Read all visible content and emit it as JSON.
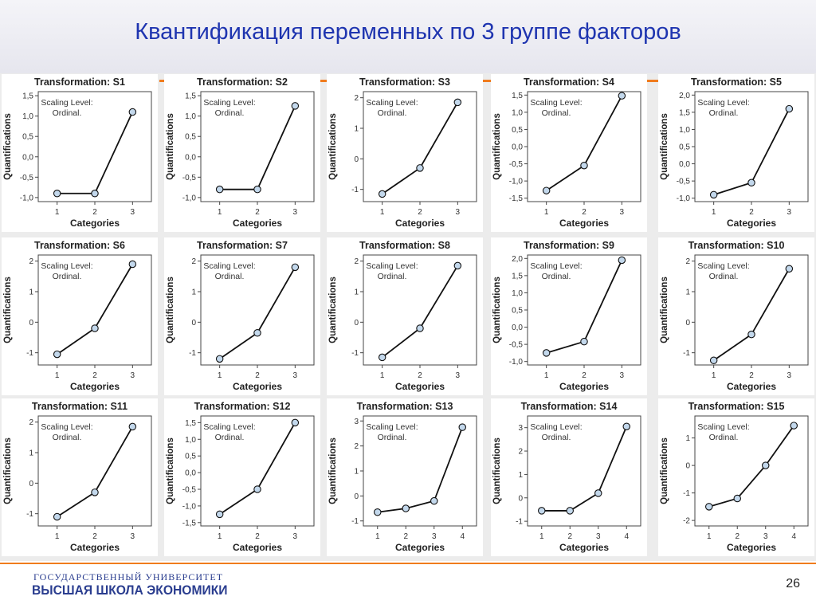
{
  "slide": {
    "title": "Квантификация переменных по 3 группе факторов",
    "footer_org_line1": "ГОСУДАРСТВЕННЫЙ УНИВЕРСИТЕТ",
    "footer_org_line2": "ВЫСШАЯ ШКОЛА ЭКОНОМИКИ",
    "page_number": "26",
    "accent_color": "#f07c1d",
    "title_color": "#1f35b0",
    "point_fill": "#c3d8ec"
  },
  "chart_data": [
    {
      "type": "line",
      "title": "Transformation: S1",
      "annotation": "Scaling Level:\nOrdinal.",
      "xlabel": "Categories",
      "ylabel": "Quantifications",
      "x": [
        1,
        2,
        3
      ],
      "y": [
        -0.9,
        -0.9,
        1.1
      ],
      "ylim": [
        -1.1,
        1.6
      ],
      "yticks": [
        "1,5",
        "1,0",
        "0,5",
        "0,0",
        "-0,5",
        "-1,0"
      ],
      "ytick_values": [
        1.5,
        1.0,
        0.5,
        0.0,
        -0.5,
        -1.0
      ]
    },
    {
      "type": "line",
      "title": "Transformation: S2",
      "annotation": "Scaling Level:\nOrdinal.",
      "xlabel": "Categories",
      "ylabel": "Quantifications",
      "x": [
        1,
        2,
        3
      ],
      "y": [
        -0.8,
        -0.8,
        1.25
      ],
      "ylim": [
        -1.1,
        1.6
      ],
      "yticks": [
        "1,5",
        "1,0",
        "0,5",
        "0,0",
        "-0,5",
        "-1,0"
      ],
      "ytick_values": [
        1.5,
        1.0,
        0.5,
        0.0,
        -0.5,
        -1.0
      ]
    },
    {
      "type": "line",
      "title": "Transformation: S3",
      "annotation": "Scaling Level:\nOrdinal.",
      "xlabel": "Categories",
      "ylabel": "Quantifications",
      "x": [
        1,
        2,
        3
      ],
      "y": [
        -1.15,
        -0.3,
        1.85
      ],
      "ylim": [
        -1.4,
        2.2
      ],
      "yticks": [
        "2",
        "1",
        "0",
        "-1"
      ],
      "ytick_values": [
        2,
        1,
        0,
        -1
      ]
    },
    {
      "type": "line",
      "title": "Transformation: S4",
      "annotation": "Scaling Level:\nOrdinal.",
      "xlabel": "Categories",
      "ylabel": "Quantifications",
      "x": [
        1,
        2,
        3
      ],
      "y": [
        -1.28,
        -0.55,
        1.48
      ],
      "ylim": [
        -1.6,
        1.6
      ],
      "yticks": [
        "1,5",
        "1,0",
        "0,5",
        "0,0",
        "-0,5",
        "-1,0",
        "-1,5"
      ],
      "ytick_values": [
        1.5,
        1.0,
        0.5,
        0.0,
        -0.5,
        -1.0,
        -1.5
      ]
    },
    {
      "type": "line",
      "title": "Transformation: S5",
      "annotation": "Scaling Level:\nOrdinal.",
      "xlabel": "Categories",
      "ylabel": "Quantifications",
      "x": [
        1,
        2,
        3
      ],
      "y": [
        -0.9,
        -0.55,
        1.6
      ],
      "ylim": [
        -1.1,
        2.1
      ],
      "yticks": [
        "2,0",
        "1,5",
        "1,0",
        "0,5",
        "0,0",
        "-0,5",
        "-1,0"
      ],
      "ytick_values": [
        2.0,
        1.5,
        1.0,
        0.5,
        0.0,
        -0.5,
        -1.0
      ]
    },
    {
      "type": "line",
      "title": "Transformation: S6",
      "annotation": "Scaling Level:\nOrdinal.",
      "xlabel": "Categories",
      "ylabel": "Quantifications",
      "x": [
        1,
        2,
        3
      ],
      "y": [
        -1.05,
        -0.2,
        1.9
      ],
      "ylim": [
        -1.4,
        2.2
      ],
      "yticks": [
        "2",
        "1",
        "0",
        "-1"
      ],
      "ytick_values": [
        2,
        1,
        0,
        -1
      ]
    },
    {
      "type": "line",
      "title": "Transformation: S7",
      "annotation": "Scaling Level:\nOrdinal.",
      "xlabel": "Categories",
      "ylabel": "Quantifications",
      "x": [
        1,
        2,
        3
      ],
      "y": [
        -1.2,
        -0.35,
        1.8
      ],
      "ylim": [
        -1.4,
        2.2
      ],
      "yticks": [
        "2",
        "1",
        "0",
        "-1"
      ],
      "ytick_values": [
        2,
        1,
        0,
        -1
      ]
    },
    {
      "type": "line",
      "title": "Transformation: S8",
      "annotation": "Scaling Level:\nOrdinal.",
      "xlabel": "Categories",
      "ylabel": "Quantifications",
      "x": [
        1,
        2,
        3
      ],
      "y": [
        -1.15,
        -0.2,
        1.85
      ],
      "ylim": [
        -1.4,
        2.2
      ],
      "yticks": [
        "2",
        "1",
        "0",
        "-1"
      ],
      "ytick_values": [
        2,
        1,
        0,
        -1
      ]
    },
    {
      "type": "line",
      "title": "Transformation: S9",
      "annotation": "Scaling Level:\nOrdinal.",
      "xlabel": "Categories",
      "ylabel": "Quantifications",
      "x": [
        1,
        2,
        3
      ],
      "y": [
        -0.75,
        -0.42,
        1.95
      ],
      "ylim": [
        -1.1,
        2.1
      ],
      "yticks": [
        "2,0",
        "1,5",
        "1,0",
        "0,5",
        "0,0",
        "-0,5",
        "-1,0"
      ],
      "ytick_values": [
        2.0,
        1.5,
        1.0,
        0.5,
        0.0,
        -0.5,
        -1.0
      ]
    },
    {
      "type": "line",
      "title": "Transformation: S10",
      "annotation": "Scaling Level:\nOrdinal.",
      "xlabel": "Categories",
      "ylabel": "Quantifications",
      "x": [
        1,
        2,
        3
      ],
      "y": [
        -1.25,
        -0.4,
        1.75
      ],
      "ylim": [
        -1.4,
        2.2
      ],
      "yticks": [
        "2",
        "1",
        "0",
        "-1"
      ],
      "ytick_values": [
        2,
        1,
        0,
        -1
      ]
    },
    {
      "type": "line",
      "title": "Transformation: S11",
      "annotation": "Scaling Level:\nOrdinal.",
      "xlabel": "Categories",
      "ylabel": "Quantifications",
      "x": [
        1,
        2,
        3
      ],
      "y": [
        -1.1,
        -0.3,
        1.85
      ],
      "ylim": [
        -1.4,
        2.2
      ],
      "yticks": [
        "2",
        "1",
        "0",
        "-1"
      ],
      "ytick_values": [
        2,
        1,
        0,
        -1
      ]
    },
    {
      "type": "line",
      "title": "Transformation: S12",
      "annotation": "Scaling Level:\nOrdinal.",
      "xlabel": "Categories",
      "ylabel": "Quantifications",
      "x": [
        1,
        2,
        3
      ],
      "y": [
        -1.25,
        -0.5,
        1.5
      ],
      "ylim": [
        -1.6,
        1.7
      ],
      "yticks": [
        "1,5",
        "1,0",
        "0,5",
        "0,0",
        "-0,5",
        "-1,0",
        "-1,5"
      ],
      "ytick_values": [
        1.5,
        1.0,
        0.5,
        0.0,
        -0.5,
        -1.0,
        -1.5
      ]
    },
    {
      "type": "line",
      "title": "Transformation: S13",
      "annotation": "Scaling Level:\nOrdinal.",
      "xlabel": "Categories",
      "ylabel": "Quantifications",
      "x": [
        1,
        2,
        3,
        4
      ],
      "y": [
        -0.65,
        -0.5,
        -0.2,
        2.75
      ],
      "ylim": [
        -1.2,
        3.2
      ],
      "yticks": [
        "3",
        "2",
        "1",
        "0",
        "-1"
      ],
      "ytick_values": [
        3,
        2,
        1,
        0,
        -1
      ]
    },
    {
      "type": "line",
      "title": "Transformation: S14",
      "annotation": "Scaling Level:\nOrdinal.",
      "xlabel": "Categories",
      "ylabel": "Quantifications",
      "x": [
        1,
        2,
        3,
        4
      ],
      "y": [
        -0.55,
        -0.55,
        0.2,
        3.05
      ],
      "ylim": [
        -1.2,
        3.5
      ],
      "yticks": [
        "3",
        "2",
        "1",
        "0",
        "-1"
      ],
      "ytick_values": [
        3,
        2,
        1,
        0,
        -1
      ]
    },
    {
      "type": "line",
      "title": "Transformation: S15",
      "annotation": "Scaling Level:\nOrdinal.",
      "xlabel": "Categories",
      "ylabel": "Quantifications",
      "x": [
        1,
        2,
        3,
        4
      ],
      "y": [
        -1.5,
        -1.2,
        0,
        1.45
      ],
      "ylim": [
        -2.2,
        1.8
      ],
      "yticks": [
        "1",
        "0",
        "-1",
        "-2"
      ],
      "ytick_values": [
        1,
        0,
        -1,
        -2
      ]
    }
  ]
}
